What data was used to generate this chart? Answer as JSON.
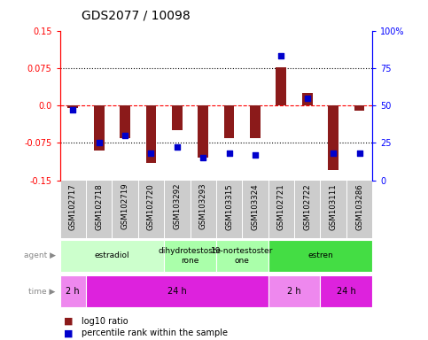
{
  "title": "GDS2077 / 10098",
  "samples": [
    "GSM102717",
    "GSM102718",
    "GSM102719",
    "GSM102720",
    "GSM103292",
    "GSM103293",
    "GSM103315",
    "GSM103324",
    "GSM102721",
    "GSM102722",
    "GSM103111",
    "GSM103286"
  ],
  "log10_ratio": [
    -0.005,
    -0.09,
    -0.065,
    -0.115,
    -0.05,
    -0.105,
    -0.065,
    -0.065,
    0.076,
    0.025,
    -0.13,
    -0.01
  ],
  "percentile": [
    47,
    25,
    30,
    18,
    22,
    15,
    18,
    17,
    83,
    55,
    18,
    18
  ],
  "ylim": [
    -0.15,
    0.15
  ],
  "yticks_left": [
    -0.15,
    -0.075,
    0.0,
    0.075,
    0.15
  ],
  "yticks_right": [
    0,
    25,
    50,
    75,
    100
  ],
  "bar_color": "#8B1A1A",
  "dot_color": "#0000CC",
  "background_color": "#ffffff",
  "sample_bg": "#cccccc",
  "agent_groups": [
    {
      "label": "estradiol",
      "start": 0,
      "end": 4,
      "color": "#ccffcc"
    },
    {
      "label": "dihydrotestoste\nrone",
      "start": 4,
      "end": 6,
      "color": "#aaffaa"
    },
    {
      "label": "19-nortestoster\none",
      "start": 6,
      "end": 8,
      "color": "#aaffaa"
    },
    {
      "label": "estren",
      "start": 8,
      "end": 12,
      "color": "#44dd44"
    }
  ],
  "time_groups": [
    {
      "label": "2 h",
      "start": 0,
      "end": 1,
      "color": "#ee88ee"
    },
    {
      "label": "24 h",
      "start": 1,
      "end": 8,
      "color": "#dd22dd"
    },
    {
      "label": "2 h",
      "start": 8,
      "end": 10,
      "color": "#ee88ee"
    },
    {
      "label": "24 h",
      "start": 10,
      "end": 12,
      "color": "#dd22dd"
    }
  ],
  "legend_red_label": "log10 ratio",
  "legend_blue_label": "percentile rank within the sample"
}
